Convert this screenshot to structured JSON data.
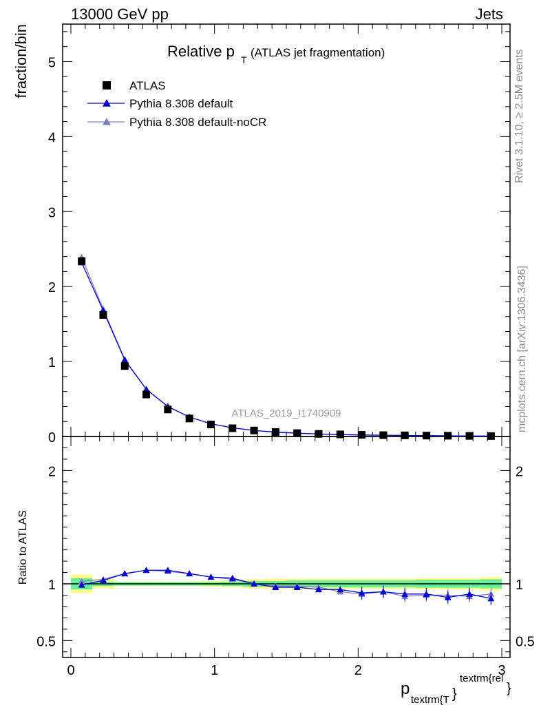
{
  "header": {
    "left": "13000 GeV pp",
    "right": "Jets"
  },
  "side_text": {
    "rivet": "Rivet 3.1.10, ≥ 2.5M events",
    "mcplots": "mcplots.cern.ch [arXiv:1306.3436]"
  },
  "colors": {
    "atlas": "#000000",
    "default": "#0000cc",
    "nocr": "#7f7fbf",
    "band_inner": "#66ee99",
    "band_outer": "#ffff88",
    "watermark": "#999999"
  },
  "chart_data": [
    {
      "type": "scatter",
      "panel": "main",
      "title_main": "Relative p",
      "title_sub": "T",
      "title_rest": "(ATLAS jet fragmentation)",
      "ylabel": "fraction/bin",
      "xlim": [
        0,
        3
      ],
      "ylim": [
        0,
        5.5
      ],
      "yticks": [
        0,
        1,
        2,
        3,
        4,
        5
      ],
      "xticks": [
        0,
        1,
        2,
        3
      ],
      "watermark": "ATLAS_2019_I1740909",
      "x": [
        0.075,
        0.225,
        0.375,
        0.525,
        0.675,
        0.825,
        0.975,
        1.125,
        1.275,
        1.425,
        1.575,
        1.725,
        1.875,
        2.025,
        2.175,
        2.325,
        2.475,
        2.625,
        2.775,
        2.925
      ],
      "series": [
        {
          "name": "ATLAS",
          "marker": "square",
          "values": [
            2.34,
            1.62,
            0.94,
            0.56,
            0.36,
            0.24,
            0.16,
            0.11,
            0.08,
            0.06,
            0.045,
            0.035,
            0.028,
            0.022,
            0.018,
            0.015,
            0.012,
            0.01,
            0.008,
            0.006
          ]
        },
        {
          "name": "Pythia 8.308 default",
          "marker": "triangle",
          "values": [
            2.32,
            1.68,
            1.02,
            0.63,
            0.4,
            0.26,
            0.17,
            0.116,
            0.08,
            0.058,
            0.044,
            0.033,
            0.026,
            0.02,
            0.017,
            0.014,
            0.011,
            0.009,
            0.007,
            0.005
          ]
        },
        {
          "name": "Pythia 8.308 default-noCR",
          "marker": "triangle",
          "values": [
            2.39,
            1.7,
            1.03,
            0.63,
            0.4,
            0.26,
            0.17,
            0.115,
            0.08,
            0.058,
            0.044,
            0.034,
            0.026,
            0.02,
            0.017,
            0.013,
            0.011,
            0.009,
            0.007,
            0.0055
          ]
        }
      ]
    },
    {
      "type": "line",
      "panel": "ratio",
      "ylabel": "Ratio to ATLAS",
      "xlabel_main": "p",
      "xlabel_sub": "textrm{T",
      "xlabel_brace": "}",
      "xlabel_sup": "textrm{rel",
      "xlabel_end": "}",
      "xlim": [
        0,
        3
      ],
      "ylim": [
        0.35,
        2.3
      ],
      "yticks": [
        0.5,
        1,
        2
      ],
      "xticks": [
        0,
        1,
        2,
        3
      ],
      "x": [
        0.075,
        0.225,
        0.375,
        0.525,
        0.675,
        0.825,
        0.975,
        1.125,
        1.275,
        1.425,
        1.575,
        1.725,
        1.875,
        2.025,
        2.175,
        2.325,
        2.475,
        2.625,
        2.775,
        2.925
      ],
      "band_inner": [
        0.05,
        0.02,
        0.015,
        0.015,
        0.015,
        0.015,
        0.015,
        0.02,
        0.025,
        0.025,
        0.03,
        0.03,
        0.03,
        0.03,
        0.03,
        0.03,
        0.035,
        0.035,
        0.035,
        0.04
      ],
      "band_outer": [
        0.08,
        0.04,
        0.02,
        0.02,
        0.02,
        0.02,
        0.025,
        0.03,
        0.04,
        0.045,
        0.045,
        0.045,
        0.045,
        0.045,
        0.045,
        0.045,
        0.05,
        0.05,
        0.05,
        0.06
      ],
      "series": [
        {
          "name": "Pythia 8.308 default",
          "values": [
            0.99,
            1.03,
            1.09,
            1.12,
            1.12,
            1.09,
            1.06,
            1.05,
            1.0,
            0.97,
            0.97,
            0.95,
            0.95,
            0.92,
            0.93,
            0.91,
            0.91,
            0.88,
            0.91,
            0.87
          ]
        },
        {
          "name": "Pythia 8.308 default-noCR",
          "values": [
            1.02,
            1.04,
            1.09,
            1.12,
            1.11,
            1.09,
            1.06,
            1.04,
            1.0,
            0.98,
            0.98,
            0.97,
            0.93,
            0.91,
            0.93,
            0.89,
            0.9,
            0.9,
            0.89,
            0.91
          ]
        }
      ],
      "reference": 1
    }
  ]
}
